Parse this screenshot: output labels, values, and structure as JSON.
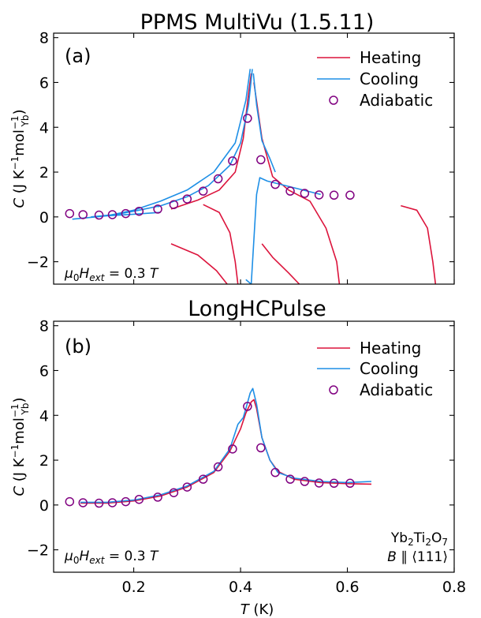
{
  "chart_data": [
    {
      "type": "line",
      "title": "PPMS MultiVu (1.5.11)",
      "panel_label": "(a)",
      "xlabel": "T (K)",
      "ylabel": "C (J K⁻¹ mol_Yb⁻¹)",
      "xlim": [
        0.05,
        0.8
      ],
      "ylim": [
        -3,
        8.2
      ],
      "yticks": [
        -2,
        0,
        2,
        4,
        6,
        8
      ],
      "legend": [
        "Heating",
        "Cooling",
        "Adiabatic"
      ],
      "legend_position": "top-right",
      "annotation": "μ0Hext = 0.3 T",
      "series": [
        {
          "name": "Heating",
          "color": "#dc143c",
          "segments": [
            [
              [
                0.27,
                0.35
              ],
              [
                0.32,
                0.75
              ],
              [
                0.36,
                1.2
              ],
              [
                0.39,
                2.0
              ],
              [
                0.405,
                3.5
              ],
              [
                0.415,
                5.5
              ],
              [
                0.42,
                6.4
              ]
            ],
            [
              [
                0.33,
                0.55
              ],
              [
                0.36,
                0.2
              ],
              [
                0.38,
                -0.7
              ],
              [
                0.39,
                -2.0
              ],
              [
                0.395,
                -3.0
              ]
            ],
            [
              [
                0.27,
                -1.2
              ],
              [
                0.32,
                -1.7
              ],
              [
                0.355,
                -2.4
              ],
              [
                0.375,
                -3.0
              ]
            ],
            [
              [
                0.425,
                6.0
              ],
              [
                0.44,
                3.5
              ],
              [
                0.46,
                1.8
              ],
              [
                0.49,
                1.2
              ],
              [
                0.53,
                0.7
              ],
              [
                0.56,
                -0.5
              ],
              [
                0.58,
                -2.0
              ],
              [
                0.585,
                -3.0
              ]
            ],
            [
              [
                0.44,
                -1.2
              ],
              [
                0.46,
                -1.8
              ],
              [
                0.49,
                -2.5
              ],
              [
                0.51,
                -3.0
              ]
            ],
            [
              [
                0.7,
                0.5
              ],
              [
                0.73,
                0.3
              ],
              [
                0.75,
                -0.5
              ],
              [
                0.76,
                -2.0
              ],
              [
                0.765,
                -3.0
              ]
            ]
          ]
        },
        {
          "name": "Cooling",
          "color": "#1e8fe6",
          "segments": [
            [
              [
                0.085,
                -0.1
              ],
              [
                0.15,
                0.05
              ],
              [
                0.2,
                0.3
              ],
              [
                0.25,
                0.7
              ],
              [
                0.3,
                1.2
              ],
              [
                0.35,
                2.0
              ],
              [
                0.39,
                3.3
              ],
              [
                0.41,
                5.2
              ],
              [
                0.418,
                6.6
              ]
            ],
            [
              [
                0.12,
                0.0
              ],
              [
                0.17,
                0.12
              ],
              [
                0.21,
                0.3
              ],
              [
                0.25,
                0.5
              ]
            ],
            [
              [
                0.15,
                0.05
              ],
              [
                0.2,
                0.12
              ],
              [
                0.25,
                0.2
              ]
            ],
            [
              [
                0.245,
                0.45
              ],
              [
                0.3,
                0.9
              ],
              [
                0.34,
                1.4
              ],
              [
                0.38,
                2.3
              ],
              [
                0.4,
                3.3
              ],
              [
                0.415,
                5.0
              ],
              [
                0.422,
                6.6
              ]
            ],
            [
              [
                0.424,
                6.4
              ],
              [
                0.43,
                5.0
              ],
              [
                0.44,
                3.4
              ],
              [
                0.455,
                2.6
              ],
              [
                0.465,
                2.0
              ]
            ],
            [
              [
                0.41,
                -2.8
              ],
              [
                0.42,
                -3.0
              ],
              [
                0.425,
                -1.0
              ],
              [
                0.43,
                1.0
              ],
              [
                0.436,
                1.75
              ],
              [
                0.45,
                1.6
              ],
              [
                0.5,
                1.3
              ],
              [
                0.55,
                1.0
              ]
            ]
          ]
        },
        {
          "name": "Adiabatic",
          "color": "#800080",
          "marker": "open-circle",
          "x": [
            0.08,
            0.105,
            0.135,
            0.16,
            0.185,
            0.21,
            0.245,
            0.275,
            0.3,
            0.33,
            0.358,
            0.385,
            0.413,
            0.438,
            0.465,
            0.493,
            0.52,
            0.547,
            0.575,
            0.605
          ],
          "y": [
            0.15,
            0.1,
            0.08,
            0.1,
            0.15,
            0.25,
            0.35,
            0.55,
            0.8,
            1.15,
            1.7,
            2.5,
            4.4,
            2.55,
            1.45,
            1.15,
            1.05,
            0.98,
            0.97,
            0.97
          ]
        }
      ]
    },
    {
      "type": "line",
      "title": "LongHCPulse",
      "panel_label": "(b)",
      "xlabel": "T (K)",
      "ylabel": "C (J K⁻¹ mol_Yb⁻¹)",
      "xlim": [
        0.05,
        0.8
      ],
      "ylim": [
        -3,
        8.2
      ],
      "xticks": [
        0.2,
        0.4,
        0.6,
        0.8
      ],
      "yticks": [
        -2,
        0,
        2,
        4,
        6,
        8
      ],
      "legend": [
        "Heating",
        "Cooling",
        "Adiabatic"
      ],
      "legend_position": "top-right",
      "annotation": "μ0Hext = 0.3 T",
      "annotation_right": [
        "Yb2Ti2O7",
        "B ∥ ⟨111⟩"
      ],
      "series": [
        {
          "name": "Heating",
          "color": "#dc143c",
          "segments": [
            [
              [
                0.1,
                0.08
              ],
              [
                0.15,
                0.08
              ],
              [
                0.2,
                0.18
              ],
              [
                0.25,
                0.4
              ],
              [
                0.3,
                0.8
              ],
              [
                0.35,
                1.45
              ],
              [
                0.38,
                2.4
              ],
              [
                0.4,
                3.4
              ],
              [
                0.41,
                4.1
              ],
              [
                0.42,
                4.6
              ],
              [
                0.425,
                4.7
              ],
              [
                0.43,
                4.3
              ],
              [
                0.44,
                3.0
              ],
              [
                0.455,
                2.0
              ],
              [
                0.47,
                1.5
              ],
              [
                0.5,
                1.15
              ],
              [
                0.55,
                1.0
              ],
              [
                0.6,
                0.95
              ],
              [
                0.645,
                0.93
              ]
            ]
          ]
        },
        {
          "name": "Cooling",
          "color": "#1e8fe6",
          "segments": [
            [
              [
                0.1,
                0.12
              ],
              [
                0.15,
                0.12
              ],
              [
                0.2,
                0.22
              ],
              [
                0.25,
                0.45
              ],
              [
                0.3,
                0.85
              ],
              [
                0.35,
                1.5
              ],
              [
                0.38,
                2.5
              ],
              [
                0.395,
                3.6
              ],
              [
                0.405,
                3.9
              ],
              [
                0.41,
                4.3
              ],
              [
                0.418,
                5.0
              ],
              [
                0.423,
                5.2
              ],
              [
                0.43,
                4.5
              ],
              [
                0.44,
                3.0
              ],
              [
                0.455,
                2.0
              ],
              [
                0.47,
                1.45
              ],
              [
                0.5,
                1.2
              ],
              [
                0.55,
                1.05
              ],
              [
                0.6,
                1.0
              ],
              [
                0.645,
                1.05
              ]
            ]
          ]
        },
        {
          "name": "Adiabatic",
          "color": "#800080",
          "marker": "open-circle",
          "x": [
            0.08,
            0.105,
            0.135,
            0.16,
            0.185,
            0.21,
            0.245,
            0.275,
            0.3,
            0.33,
            0.358,
            0.385,
            0.413,
            0.438,
            0.465,
            0.493,
            0.52,
            0.547,
            0.575,
            0.605
          ],
          "y": [
            0.15,
            0.1,
            0.08,
            0.1,
            0.15,
            0.25,
            0.35,
            0.55,
            0.8,
            1.15,
            1.7,
            2.5,
            4.4,
            2.55,
            1.45,
            1.15,
            1.05,
            0.98,
            0.97,
            0.97
          ]
        }
      ]
    }
  ]
}
